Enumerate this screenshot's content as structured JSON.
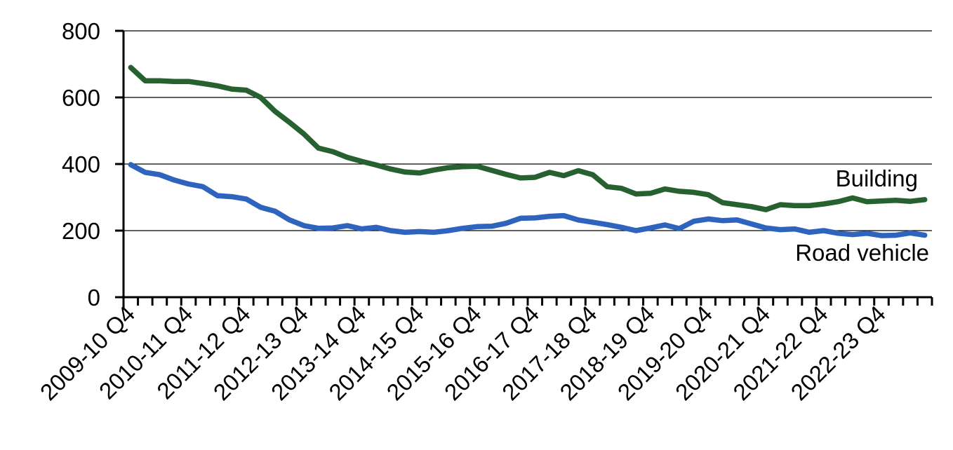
{
  "chart_data": {
    "type": "line",
    "title": "",
    "xlabel": "",
    "ylabel": "",
    "ylim": [
      0,
      800
    ],
    "yticks": [
      0,
      200,
      400,
      600,
      800
    ],
    "grid": {
      "horizontal": true,
      "vertical": false
    },
    "legend": {
      "position": "inline-labels-right"
    },
    "x": [
      "2009-10 Q4",
      "2010-11 Q1",
      "2010-11 Q2",
      "2010-11 Q3",
      "2010-11 Q4",
      "2011-12 Q1",
      "2011-12 Q2",
      "2011-12 Q3",
      "2011-12 Q4",
      "2012-13 Q1",
      "2012-13 Q2",
      "2012-13 Q3",
      "2012-13 Q4",
      "2013-14 Q1",
      "2013-14 Q2",
      "2013-14 Q3",
      "2013-14 Q4",
      "2014-15 Q1",
      "2014-15 Q2",
      "2014-15 Q3",
      "2014-15 Q4",
      "2015-16 Q1",
      "2015-16 Q2",
      "2015-16 Q3",
      "2015-16 Q4",
      "2016-17 Q1",
      "2016-17 Q2",
      "2016-17 Q3",
      "2016-17 Q4",
      "2017-18 Q1",
      "2017-18 Q2",
      "2017-18 Q3",
      "2017-18 Q4",
      "2018-19 Q1",
      "2018-19 Q2",
      "2018-19 Q3",
      "2018-19 Q4",
      "2019-20 Q1",
      "2019-20 Q2",
      "2019-20 Q3",
      "2019-20 Q4",
      "2020-21 Q1",
      "2020-21 Q2",
      "2020-21 Q3",
      "2020-21 Q4",
      "2021-22 Q1",
      "2021-22 Q2",
      "2021-22 Q3",
      "2021-22 Q4",
      "2022-23 Q1",
      "2022-23 Q2",
      "2022-23 Q3",
      "2022-23 Q4",
      "2023-24 Q1",
      "2023-24 Q2",
      "2023-24 Q3"
    ],
    "xtick_labels": [
      "2009-10 Q4",
      "2010-11 Q4",
      "2011-12 Q4",
      "2012-13 Q4",
      "2013-14 Q4",
      "2014-15 Q4",
      "2015-16 Q4",
      "2016-17 Q4",
      "2017-18 Q4",
      "2018-19 Q4",
      "2019-20 Q4",
      "2020-21 Q4",
      "2021-22 Q4",
      "2022-23 Q4"
    ],
    "series": [
      {
        "name": "Building",
        "color": "#276130",
        "values": [
          690,
          650,
          650,
          648,
          648,
          642,
          635,
          625,
          622,
          600,
          558,
          525,
          490,
          448,
          437,
          420,
          408,
          397,
          385,
          376,
          373,
          382,
          389,
          392,
          393,
          381,
          369,
          358,
          360,
          375,
          365,
          380,
          368,
          332,
          327,
          310,
          312,
          325,
          318,
          315,
          308,
          284,
          278,
          272,
          263,
          278,
          275,
          275,
          280,
          287,
          298,
          287,
          289,
          291,
          288,
          293
        ]
      },
      {
        "name": "Road vehicle",
        "color": "#2E64BE",
        "values": [
          398,
          375,
          368,
          352,
          340,
          332,
          305,
          302,
          295,
          270,
          258,
          232,
          215,
          207,
          208,
          215,
          205,
          210,
          200,
          195,
          197,
          195,
          200,
          207,
          212,
          213,
          222,
          237,
          238,
          243,
          245,
          232,
          225,
          218,
          210,
          200,
          208,
          217,
          206,
          228,
          235,
          230,
          232,
          220,
          208,
          203,
          205,
          195,
          200,
          192,
          188,
          192,
          185,
          186,
          193,
          186
        ]
      }
    ]
  },
  "labels": {
    "building": "Building",
    "road_vehicle": "Road vehicle"
  }
}
